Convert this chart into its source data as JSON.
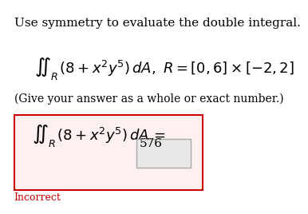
{
  "title_text": "Use symmetry to evaluate the double integral.",
  "integral_top": "$\\displaystyle\\iint_R (8 + x^2 y^5)\\, dA,\\ R = [0, 6] \\times [-2, 2]$",
  "give_answer_text": "(Give your answer as a whole or exact number.)",
  "integral_bottom": "$\\displaystyle\\iint_R (8 + x^2 y^5)\\, dA = $",
  "answer_value": "576",
  "incorrect_text": "Incorrect",
  "bg_color": "#ffffff",
  "box_border_color": "#cc0000",
  "box_fill_color": "#fdf0f0",
  "answer_box_color": "#e8e8e8",
  "answer_box_border": "#aaaaaa",
  "incorrect_color": "#cc0000",
  "title_fontsize": 11,
  "math_fontsize": 13,
  "small_fontsize": 10
}
